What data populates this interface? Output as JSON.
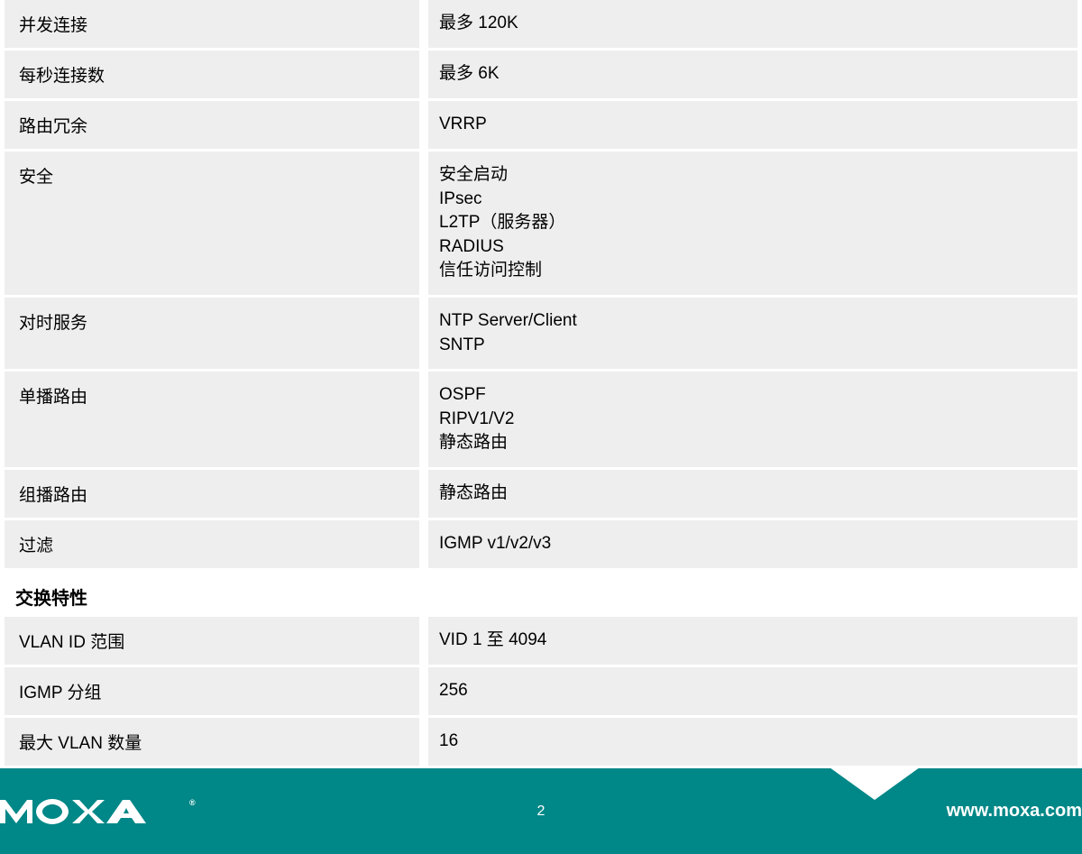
{
  "sections": [
    {
      "rows": [
        {
          "label": "并发连接",
          "value": "最多 120K"
        },
        {
          "label": "每秒连接数",
          "value": "最多 6K"
        },
        {
          "label": "路由冗余",
          "value": "VRRP"
        },
        {
          "label": "安全",
          "value": "安全启动\nIPsec\nL2TP（服务器）\nRADIUS\n信任访问控制"
        },
        {
          "label": "对时服务",
          "value": "NTP Server/Client\nSNTP"
        },
        {
          "label": "单播路由",
          "value": "OSPF\nRIPV1/V2\n静态路由"
        },
        {
          "label": "组播路由",
          "value": "静态路由"
        },
        {
          "label": "过滤",
          "value": "IGMP v1/v2/v3"
        }
      ]
    },
    {
      "header": "交换特性",
      "rows": [
        {
          "label": "VLAN ID 范围",
          "value": "VID 1 至 4094"
        },
        {
          "label": "IGMP 分组",
          "value": "256"
        },
        {
          "label": "最大 VLAN 数量",
          "value": "16"
        }
      ]
    }
  ],
  "footer": {
    "logo_text": "MOXA",
    "page_number": "2",
    "url": "www.moxa.com"
  },
  "colors": {
    "row_bg": "#eeeeee",
    "footer_bg": "#008787",
    "text": "#000000",
    "footer_text": "#ffffff"
  }
}
